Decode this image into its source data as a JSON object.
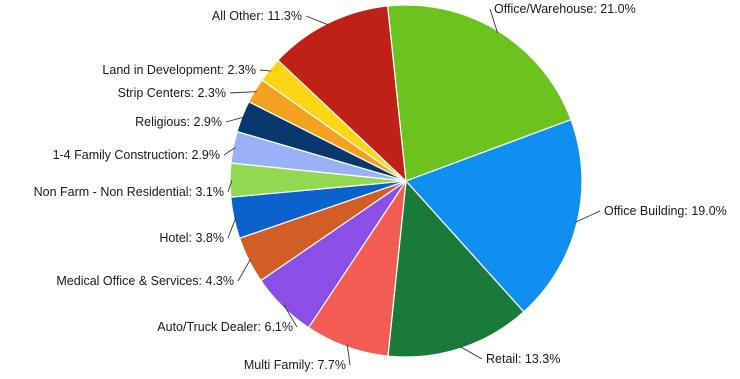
{
  "chart_data": {
    "type": "pie",
    "title": "",
    "legend": "none",
    "slices": [
      {
        "label": "Office/Warehouse",
        "value": 21.0,
        "display": "Office/Warehouse: 21.0%",
        "color": "#6cc31d"
      },
      {
        "label": "Office Building",
        "value": 19.0,
        "display": "Office Building: 19.0%",
        "color": "#0f90f1"
      },
      {
        "label": "Retail",
        "value": 13.3,
        "display": "Retail: 13.3%",
        "color": "#1a7a3a"
      },
      {
        "label": "Multi Family",
        "value": 7.7,
        "display": "Multi Family: 7.7%",
        "color": "#f25c52"
      },
      {
        "label": "Auto/Truck Dealer",
        "value": 6.1,
        "display": "Auto/Truck Dealer: 6.1%",
        "color": "#8b4ee6"
      },
      {
        "label": "Medical Office & Services",
        "value": 4.3,
        "display": "Medical Office & Services: 4.3%",
        "color": "#d35e25"
      },
      {
        "label": "Hotel",
        "value": 3.8,
        "display": "Hotel: 3.8%",
        "color": "#0a62cc"
      },
      {
        "label": "Non Farm - Non Residential",
        "value": 3.1,
        "display": "Non Farm - Non Residential: 3.1%",
        "color": "#93d851"
      },
      {
        "label": "1-4 Family Construction",
        "value": 2.9,
        "display": "1-4 Family Construction: 2.9%",
        "color": "#9bb1f7"
      },
      {
        "label": "Religious",
        "value": 2.9,
        "display": "Religious: 2.9%",
        "color": "#08386d"
      },
      {
        "label": "Strip Centers",
        "value": 2.3,
        "display": "Strip Centers: 2.3%",
        "color": "#f4a11f"
      },
      {
        "label": "Land in Development",
        "value": 2.3,
        "display": "Land in Development: 2.3%",
        "color": "#fcd514"
      },
      {
        "label": "All Other",
        "value": 11.3,
        "display": "All Other: 11.3%",
        "color": "#bf2116"
      }
    ]
  }
}
